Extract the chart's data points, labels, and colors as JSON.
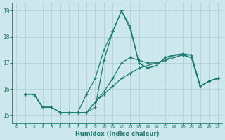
{
  "xlabel": "Humidex (Indice chaleur)",
  "xlim": [
    -0.5,
    23.5
  ],
  "ylim": [
    14.7,
    19.3
  ],
  "yticks": [
    15,
    16,
    17,
    18,
    19
  ],
  "xticks": [
    0,
    1,
    2,
    3,
    4,
    5,
    6,
    7,
    8,
    9,
    10,
    11,
    12,
    13,
    14,
    15,
    16,
    17,
    18,
    19,
    20,
    21,
    22,
    23
  ],
  "bg_color": "#cce8ec",
  "grid_color": "#aacfd4",
  "line_color": "#1e7b72",
  "line1": [
    15.8,
    15.8,
    15.3,
    15.3,
    15.1,
    15.1,
    15.1,
    15.1,
    15.3,
    17.1,
    18.2,
    19.0,
    18.3,
    17.0,
    16.8,
    16.9,
    17.2,
    17.3,
    17.3,
    17.2,
    16.1,
    16.3,
    16.4
  ],
  "line1_x": [
    1,
    2,
    3,
    4,
    5,
    6,
    7,
    8,
    9,
    10,
    11,
    12,
    13,
    14,
    15,
    16,
    17,
    18,
    19,
    20,
    21,
    22,
    23
  ],
  "line2": [
    15.8,
    15.8,
    15.3,
    15.3,
    15.1,
    15.1,
    15.1,
    15.8,
    16.4,
    17.5,
    18.2,
    19.0,
    18.4,
    17.0,
    16.8,
    16.9,
    17.2,
    17.3,
    17.3,
    17.2,
    16.1,
    16.3,
    16.4
  ],
  "line2_x": [
    1,
    2,
    3,
    4,
    5,
    6,
    7,
    8,
    9,
    10,
    11,
    12,
    13,
    14,
    15,
    16,
    17,
    18,
    19,
    20,
    21,
    22,
    23
  ],
  "line3": [
    15.8,
    15.8,
    15.3,
    15.3,
    15.1,
    15.1,
    15.1,
    15.1,
    15.5,
    15.9,
    16.4,
    17.0,
    17.2,
    17.1,
    17.0,
    17.0,
    17.1,
    17.3,
    17.35,
    17.3,
    16.1,
    16.3,
    16.4
  ],
  "line3_x": [
    1,
    2,
    3,
    4,
    5,
    6,
    7,
    8,
    9,
    10,
    11,
    12,
    13,
    14,
    15,
    16,
    17,
    18,
    19,
    20,
    21,
    22,
    23
  ],
  "line4": [
    15.8,
    15.8,
    15.3,
    15.3,
    15.1,
    15.1,
    15.1,
    15.1,
    15.5,
    15.8,
    16.1,
    16.4,
    16.6,
    16.8,
    16.9,
    17.0,
    17.1,
    17.2,
    17.3,
    17.3,
    16.1,
    16.3,
    16.4
  ],
  "line4_x": [
    1,
    2,
    3,
    4,
    5,
    6,
    7,
    8,
    9,
    10,
    11,
    12,
    13,
    14,
    15,
    16,
    17,
    18,
    19,
    20,
    21,
    22,
    23
  ]
}
